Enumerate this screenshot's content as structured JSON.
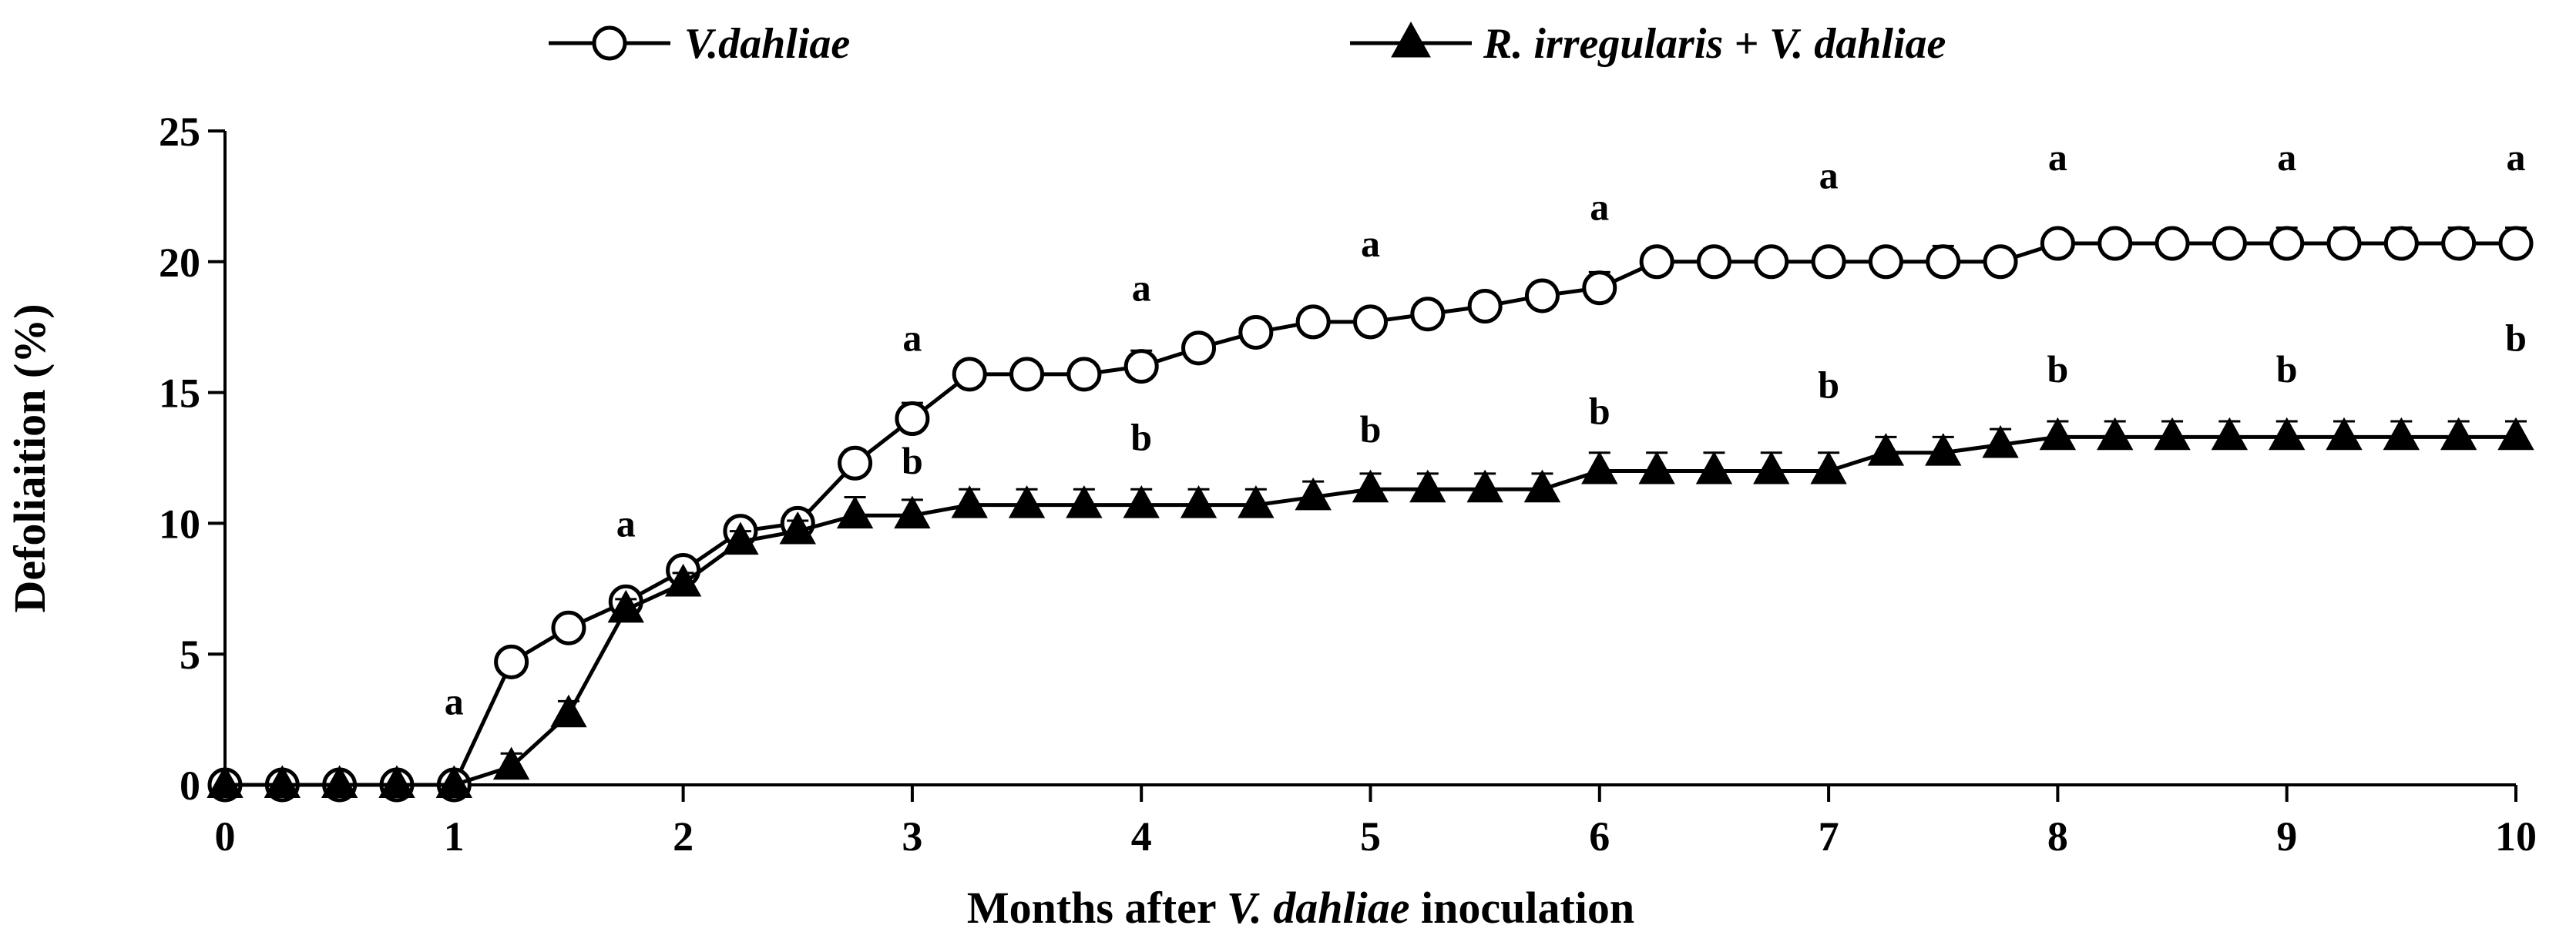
{
  "chart_data": {
    "type": "line",
    "xlabel_parts": [
      "Months after ",
      "V. dahliae",
      " inoculation"
    ],
    "ylabel": "Defoliaition (%)",
    "xlim": [
      0,
      10
    ],
    "ylim": [
      0,
      25
    ],
    "xticks": [
      0,
      1,
      2,
      3,
      4,
      5,
      6,
      7,
      8,
      9,
      10
    ],
    "yticks": [
      0,
      5,
      10,
      15,
      20,
      25
    ],
    "legend_position": "top",
    "series": [
      {
        "name": "V.dahliae",
        "marker": "open-circle",
        "x": [
          0,
          0.25,
          0.5,
          0.75,
          1,
          1.25,
          1.5,
          1.75,
          2,
          2.25,
          2.5,
          2.75,
          3,
          3.25,
          3.5,
          3.75,
          4,
          4.25,
          4.5,
          4.75,
          5,
          5.25,
          5.5,
          5.75,
          6,
          6.25,
          6.5,
          6.75,
          7,
          7.25,
          7.5,
          7.75,
          8,
          8.25,
          8.5,
          8.75,
          9,
          9.25,
          9.5,
          9.75,
          10
        ],
        "values": [
          0,
          0,
          0,
          0,
          0,
          4.7,
          6.0,
          7.0,
          8.2,
          9.7,
          10.0,
          12.3,
          14.0,
          15.7,
          15.7,
          15.7,
          16.0,
          16.7,
          17.3,
          17.7,
          17.7,
          18.0,
          18.3,
          18.7,
          19.0,
          20.0,
          20.0,
          20.0,
          20.0,
          20.0,
          20.0,
          20.0,
          20.7,
          20.7,
          20.7,
          20.7,
          20.7,
          20.7,
          20.7,
          20.7,
          20.7
        ],
        "errors": [
          0,
          0,
          0,
          0,
          0,
          0.3,
          0.3,
          0.4,
          0.4,
          0.4,
          0.5,
          0.5,
          0.6,
          0.4,
          0.4,
          0.4,
          0.6,
          0.4,
          0.4,
          0.4,
          0.4,
          0.4,
          0.5,
          0.5,
          0.6,
          0.5,
          0.5,
          0.4,
          0.5,
          0.5,
          0.6,
          0.5,
          0.4,
          0.5,
          0.5,
          0.5,
          0.6,
          0.6,
          0.6,
          0.6,
          0.6
        ]
      },
      {
        "name": "R. irregularis + V. dahliae",
        "marker": "filled-triangle",
        "x": [
          0,
          0.25,
          0.5,
          0.75,
          1,
          1.25,
          1.5,
          1.75,
          2,
          2.25,
          2.5,
          2.75,
          3,
          3.25,
          3.5,
          3.75,
          4,
          4.25,
          4.5,
          4.75,
          5,
          5.25,
          5.5,
          5.75,
          6,
          6.25,
          6.5,
          6.75,
          7,
          7.25,
          7.5,
          7.75,
          8,
          8.25,
          8.5,
          8.75,
          9,
          9.25,
          9.5,
          9.75,
          10
        ],
        "values": [
          0,
          0,
          0,
          0,
          0,
          0.7,
          2.7,
          6.7,
          7.7,
          9.3,
          9.7,
          10.3,
          10.3,
          10.7,
          10.7,
          10.7,
          10.7,
          10.7,
          10.7,
          11.0,
          11.3,
          11.3,
          11.3,
          11.3,
          12.0,
          12.0,
          12.0,
          12.0,
          12.0,
          12.7,
          12.7,
          13.0,
          13.3,
          13.3,
          13.3,
          13.3,
          13.3,
          13.3,
          13.3,
          13.3,
          13.3
        ],
        "errors": [
          0,
          0,
          0,
          0,
          0,
          0.5,
          0.5,
          0.4,
          0.4,
          0.4,
          0.4,
          0.7,
          0.6,
          0.6,
          0.6,
          0.6,
          0.6,
          0.6,
          0.6,
          0.6,
          0.6,
          0.6,
          0.6,
          0.6,
          0.7,
          0.7,
          0.7,
          0.7,
          0.7,
          0.6,
          0.6,
          0.6,
          0.6,
          0.6,
          0.6,
          0.6,
          0.6,
          0.6,
          0.6,
          0.6,
          0.6
        ]
      }
    ],
    "annotations": [
      {
        "text": "a",
        "x": 1,
        "y": 2.7
      },
      {
        "text": "a",
        "x": 1.75,
        "y": 9.5
      },
      {
        "text": "a",
        "x": 3,
        "y": 16.6
      },
      {
        "text": "b",
        "x": 3,
        "y": 11.9
      },
      {
        "text": "a",
        "x": 4,
        "y": 18.5
      },
      {
        "text": "b",
        "x": 4,
        "y": 12.8
      },
      {
        "text": "a",
        "x": 5,
        "y": 20.2
      },
      {
        "text": "b",
        "x": 5,
        "y": 13.1
      },
      {
        "text": "a",
        "x": 6,
        "y": 21.6
      },
      {
        "text": "b",
        "x": 6,
        "y": 13.8
      },
      {
        "text": "a",
        "x": 7,
        "y": 22.8
      },
      {
        "text": "b",
        "x": 7,
        "y": 14.8
      },
      {
        "text": "a",
        "x": 8,
        "y": 23.5
      },
      {
        "text": "b",
        "x": 8,
        "y": 15.4
      },
      {
        "text": "a",
        "x": 9,
        "y": 23.5
      },
      {
        "text": "b",
        "x": 9,
        "y": 15.4
      },
      {
        "text": "a",
        "x": 10,
        "y": 23.5
      },
      {
        "text": "b",
        "x": 10,
        "y": 16.6
      }
    ]
  }
}
